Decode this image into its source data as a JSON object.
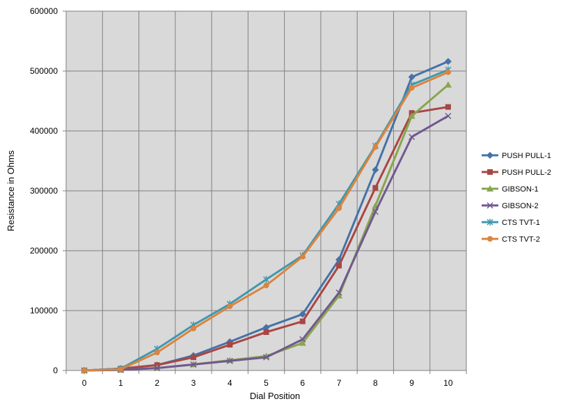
{
  "chart_data": {
    "type": "line",
    "title": "",
    "xlabel": "Dial Position",
    "ylabel": "Resistance in Ohms",
    "x": [
      0,
      1,
      2,
      3,
      4,
      5,
      6,
      7,
      8,
      9,
      10
    ],
    "ylim": [
      0,
      600000
    ],
    "yticks": [
      0,
      100000,
      200000,
      300000,
      400000,
      500000,
      600000
    ],
    "grid": true,
    "legend_position": "right",
    "series": [
      {
        "name": "PUSH PULL-1",
        "color": "#4572A7",
        "marker": "diamond",
        "values": [
          0,
          3000,
          9000,
          25000,
          48000,
          72000,
          94000,
          185000,
          335000,
          490000,
          516000
        ]
      },
      {
        "name": "PUSH PULL-2",
        "color": "#AA4643",
        "marker": "square",
        "values": [
          0,
          3000,
          9000,
          22000,
          43000,
          64000,
          82000,
          175000,
          305000,
          430000,
          440000
        ]
      },
      {
        "name": "GIBSON-1",
        "color": "#89A54E",
        "marker": "triangle",
        "values": [
          0,
          1000,
          4000,
          10000,
          17000,
          24000,
          46000,
          125000,
          275000,
          425000,
          477000
        ]
      },
      {
        "name": "GIBSON-2",
        "color": "#71588F",
        "marker": "x",
        "values": [
          0,
          1000,
          4000,
          10000,
          16000,
          22000,
          52000,
          130000,
          265000,
          390000,
          425000
        ]
      },
      {
        "name": "CTS TVT-1",
        "color": "#4198AF",
        "marker": "star",
        "values": [
          0,
          3000,
          36000,
          76000,
          111000,
          152000,
          192000,
          278000,
          375000,
          477000,
          502000
        ]
      },
      {
        "name": "CTS TVT-2",
        "color": "#DB843D",
        "marker": "circle",
        "values": [
          0,
          2000,
          30000,
          70000,
          107000,
          142000,
          190000,
          271000,
          373000,
          472000,
          498000
        ]
      }
    ]
  }
}
